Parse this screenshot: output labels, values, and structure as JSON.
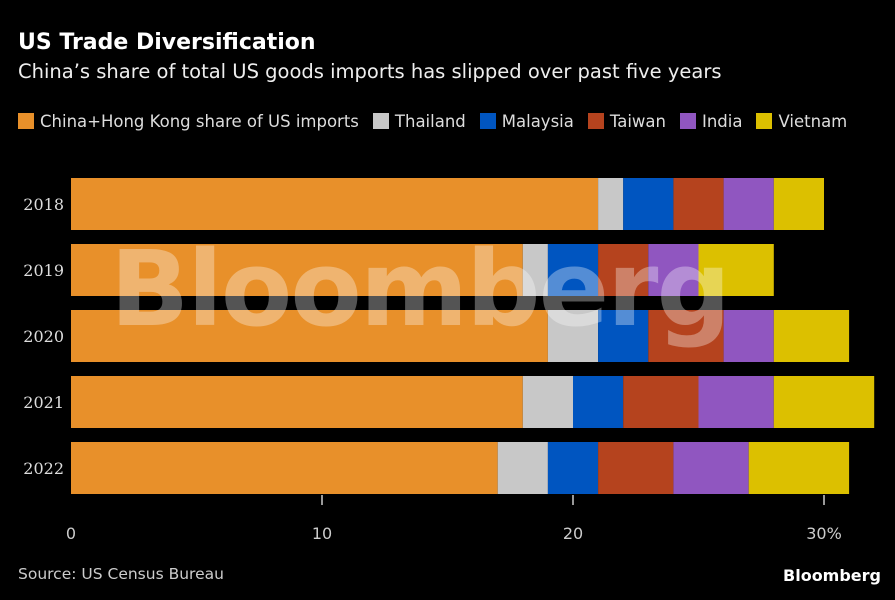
{
  "header": {
    "title": "US Trade Diversification",
    "subtitle": "China’s share of total US goods imports has slipped over past five years"
  },
  "footer": {
    "source": "Source: US Census Bureau",
    "brand": "Bloomberg"
  },
  "watermark": "Bloomberg",
  "chart_data": {
    "type": "bar",
    "orientation": "horizontal",
    "stacked": true,
    "categories": [
      "2018",
      "2019",
      "2020",
      "2021",
      "2022"
    ],
    "series": [
      {
        "name": "China+Hong Kong share of US imports",
        "color": "#e8902a",
        "values": [
          21,
          18,
          19,
          18,
          17
        ]
      },
      {
        "name": "Thailand",
        "color": "#c8c8c8",
        "values": [
          1,
          1,
          2,
          2,
          2
        ]
      },
      {
        "name": "Malaysia",
        "color": "#0055c0",
        "values": [
          2,
          2,
          2,
          2,
          2
        ]
      },
      {
        "name": "Taiwan",
        "color": "#b5431e",
        "values": [
          2,
          2,
          3,
          3,
          3
        ]
      },
      {
        "name": "India",
        "color": "#9056c0",
        "values": [
          2,
          2,
          2,
          3,
          3
        ]
      },
      {
        "name": "Vietnam",
        "color": "#dcc000",
        "values": [
          2,
          3,
          3,
          4,
          4
        ]
      }
    ],
    "xlim": [
      0,
      32
    ],
    "ticks": [
      0,
      10,
      20,
      30
    ],
    "tick_labels": [
      "0",
      "10",
      "20",
      "30%"
    ],
    "legend": "top",
    "grid": false
  }
}
